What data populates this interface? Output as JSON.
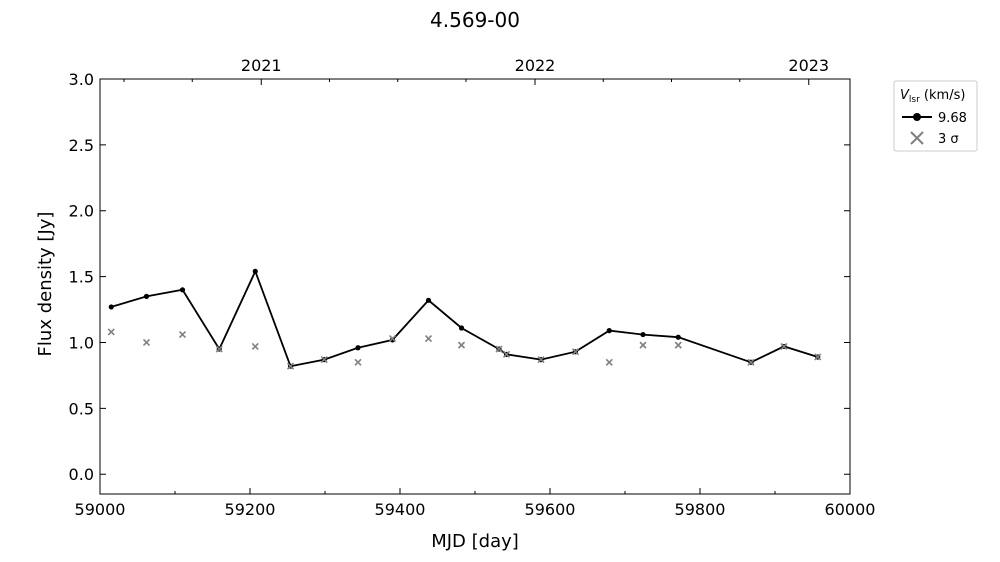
{
  "chart_data": {
    "type": "line",
    "title": "4.569-00",
    "xlabel": "MJD [day]",
    "ylabel": "Flux density [Jy]",
    "xlim": [
      59000,
      60000
    ],
    "ylim": [
      -0.15,
      3.0
    ],
    "x_ticks": [
      59000,
      59200,
      59400,
      59600,
      59800,
      60000
    ],
    "y_ticks": [
      0.0,
      0.5,
      1.0,
      1.5,
      2.0,
      2.5,
      3.0
    ],
    "top_axis": {
      "ticks": [
        {
          "label": "2021",
          "mjd": 59215
        },
        {
          "label": "2022",
          "mjd": 59580
        },
        {
          "label": "2023",
          "mjd": 59945
        }
      ]
    },
    "grid": false,
    "legend": {
      "title_main": "V",
      "title_sub": "lsr",
      "title_unit": " (km/s)",
      "position": "outside-top-right",
      "entries": [
        "9.68",
        "3 σ"
      ]
    },
    "colors": {
      "series": "#000000",
      "sigma": "#808080"
    },
    "series": [
      {
        "name": "9.68",
        "x": [
          59015,
          59062,
          59110,
          59159,
          59207,
          59254,
          59299,
          59344,
          59390,
          59438,
          59482,
          59532,
          59542,
          59588,
          59634,
          59679,
          59724,
          59771,
          59868,
          59912,
          59957
        ],
        "y": [
          1.27,
          1.35,
          1.4,
          0.95,
          1.54,
          0.82,
          0.87,
          0.96,
          1.02,
          1.32,
          1.11,
          0.95,
          0.91,
          0.87,
          0.93,
          1.09,
          1.06,
          1.04,
          0.85,
          0.97,
          0.89
        ]
      },
      {
        "name": "3 σ",
        "x": [
          59015,
          59062,
          59110,
          59159,
          59207,
          59254,
          59299,
          59344,
          59390,
          59438,
          59482,
          59532,
          59542,
          59588,
          59634,
          59679,
          59724,
          59771,
          59868,
          59912,
          59957
        ],
        "y": [
          1.08,
          1.0,
          1.06,
          0.95,
          0.97,
          0.82,
          0.87,
          0.85,
          1.03,
          1.03,
          0.98,
          0.95,
          0.91,
          0.87,
          0.93,
          0.85,
          0.98,
          0.98,
          0.85,
          0.97,
          0.89
        ]
      }
    ]
  }
}
